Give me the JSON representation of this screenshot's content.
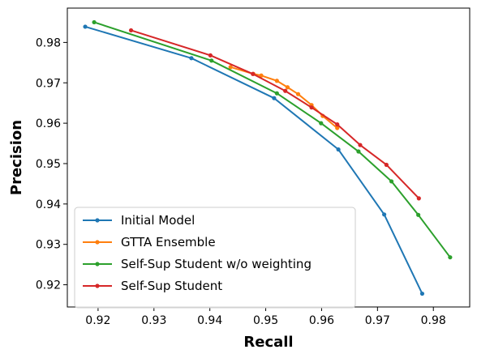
{
  "chart_data": {
    "type": "line",
    "title": "",
    "xlabel": "Recall",
    "ylabel": "Precision",
    "xlim": [
      0.9145,
      0.9865
    ],
    "ylim": [
      0.9145,
      0.9885
    ],
    "xticks": [
      0.92,
      0.93,
      0.94,
      0.95,
      0.96,
      0.97,
      0.98
    ],
    "yticks": [
      0.92,
      0.93,
      0.94,
      0.95,
      0.96,
      0.97,
      0.98
    ],
    "xtick_labels": [
      "0.92",
      "0.93",
      "0.94",
      "0.95",
      "0.96",
      "0.97",
      "0.98"
    ],
    "ytick_labels": [
      "0.92",
      "0.93",
      "0.94",
      "0.95",
      "0.96",
      "0.97",
      "0.98"
    ],
    "grid": false,
    "legend_position": "bottom-left",
    "series": [
      {
        "name": "Initial Model",
        "color": "#1f77b4",
        "x": [
          0.9177,
          0.9367,
          0.9515,
          0.963,
          0.9712,
          0.978
        ],
        "y": [
          0.9839,
          0.9761,
          0.9662,
          0.9535,
          0.9374,
          0.9178
        ]
      },
      {
        "name": "GTTA Ensemble",
        "color": "#ff7f0e",
        "x": [
          0.9437,
          0.9478,
          0.9492,
          0.952,
          0.9539,
          0.9558,
          0.9582,
          0.9602,
          0.9628
        ],
        "y": [
          0.9739,
          0.9722,
          0.9718,
          0.9705,
          0.9689,
          0.9672,
          0.9645,
          0.9618,
          0.9588
        ]
      },
      {
        "name": "Self-Sup Student w/o weighting",
        "color": "#2ca02c",
        "x": [
          0.9193,
          0.9403,
          0.952,
          0.9599,
          0.9666,
          0.9725,
          0.9773,
          0.983
        ],
        "y": [
          0.985,
          0.9755,
          0.9674,
          0.96,
          0.953,
          0.9456,
          0.9373,
          0.9268
        ]
      },
      {
        "name": "Self-Sup Student",
        "color": "#d62728",
        "x": [
          0.9259,
          0.9401,
          0.9477,
          0.9535,
          0.9582,
          0.9628,
          0.9669,
          0.9716,
          0.9774
        ],
        "y": [
          0.983,
          0.9768,
          0.9722,
          0.968,
          0.9639,
          0.9597,
          0.9546,
          0.9497,
          0.9414
        ]
      }
    ]
  }
}
